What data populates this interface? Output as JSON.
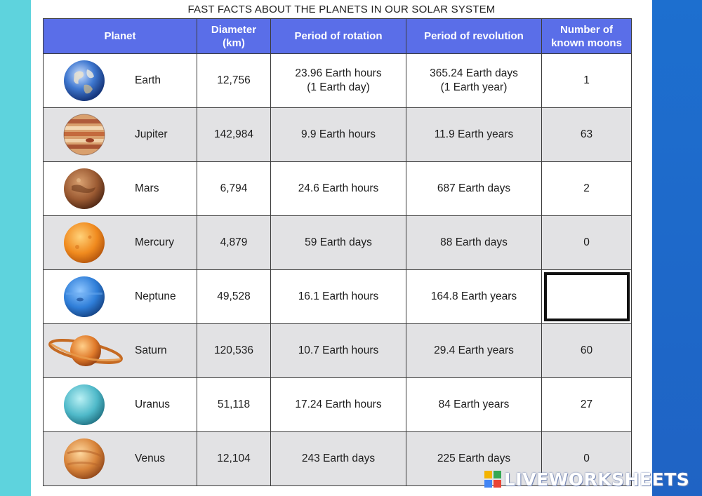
{
  "title": "FAST FACTS ABOUT THE PLANETS IN OUR SOLAR SYSTEM",
  "columns": [
    {
      "line1": "Planet",
      "line2": ""
    },
    {
      "line1": "Diameter",
      "line2": "(km)"
    },
    {
      "line1": "Period of rotation",
      "line2": ""
    },
    {
      "line1": "Period of revolution",
      "line2": ""
    },
    {
      "line1": "Number of",
      "line2": "known moons"
    }
  ],
  "rows": [
    {
      "icon": "earth-icon",
      "planet": "Earth",
      "diameter": "12,756",
      "rotation1": "23.96 Earth hours",
      "rotation2": "(1 Earth day)",
      "revolution1": "365.24 Earth days",
      "revolution2": "(1 Earth year)",
      "moons": "1"
    },
    {
      "icon": "jupiter-icon",
      "planet": "Jupiter",
      "diameter": "142,984",
      "rotation1": "9.9 Earth hours",
      "rotation2": "",
      "revolution1": "11.9 Earth years",
      "revolution2": "",
      "moons": "63"
    },
    {
      "icon": "mars-icon",
      "planet": "Mars",
      "diameter": "6,794",
      "rotation1": "24.6 Earth hours",
      "rotation2": "",
      "revolution1": "687 Earth days",
      "revolution2": "",
      "moons": "2"
    },
    {
      "icon": "mercury-icon",
      "planet": "Mercury",
      "diameter": "4,879",
      "rotation1": "59 Earth days",
      "rotation2": "",
      "revolution1": "88 Earth days",
      "revolution2": "",
      "moons": "0"
    },
    {
      "icon": "neptune-icon",
      "planet": "Neptune",
      "diameter": "49,528",
      "rotation1": "16.1 Earth hours",
      "rotation2": "",
      "revolution1": "164.8 Earth years",
      "revolution2": "",
      "moons": ""
    },
    {
      "icon": "saturn-icon",
      "planet": "Saturn",
      "diameter": "120,536",
      "rotation1": "10.7 Earth hours",
      "rotation2": "",
      "revolution1": "29.4 Earth years",
      "revolution2": "",
      "moons": "60"
    },
    {
      "icon": "uranus-icon",
      "planet": "Uranus",
      "diameter": "51,118",
      "rotation1": "17.24 Earth hours",
      "rotation2": "",
      "revolution1": "84 Earth years",
      "revolution2": "",
      "moons": "27"
    },
    {
      "icon": "venus-icon",
      "planet": "Venus",
      "diameter": "12,104",
      "rotation1": "243 Earth days",
      "rotation2": "",
      "revolution1": "225 Earth days",
      "revolution2": "",
      "moons": "0"
    }
  ],
  "answer_input": {
    "value": ""
  },
  "watermark": {
    "text": "LIVEWORKSHEETS",
    "icon": "liveworksheets-logo-icon"
  },
  "colors": {
    "header": "#5a6ee8",
    "shade": "#e2e2e4",
    "left_bar": "#5ed3dd",
    "right_bar": "#1d6fcf"
  }
}
